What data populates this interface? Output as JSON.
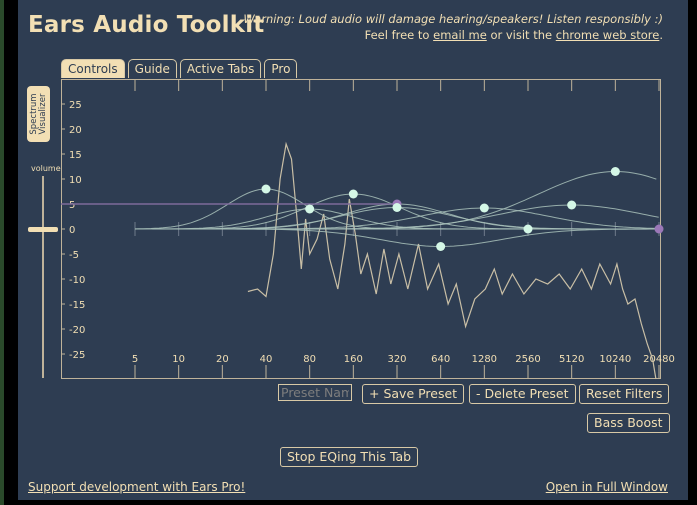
{
  "app": {
    "title": "Ears Audio Toolkit",
    "warning": "Warning: Loud audio will damage hearing/speakers! Listen responsibly :)",
    "contact_prefix": "Feel free to",
    "contact_email_link": "email me",
    "contact_middle": "or visit the",
    "contact_store_link": "chrome web store",
    "contact_suffix": "."
  },
  "tabs": [
    {
      "label": "Controls",
      "active": true
    },
    {
      "label": "Guide",
      "active": false
    },
    {
      "label": "Active Tabs",
      "active": false
    },
    {
      "label": "Pro",
      "active": false
    }
  ],
  "side": {
    "spectrum_tab": "Spectrum Visualizer",
    "volume_label": "volume"
  },
  "chart_data": {
    "type": "line",
    "x_scale": "log",
    "y_ticks": [
      25,
      20,
      15,
      10,
      5,
      0,
      -5,
      -10,
      -15,
      -20,
      -25
    ],
    "ylim": [
      -30,
      30
    ],
    "x_ticks": [
      "5",
      "10",
      "20",
      "40",
      "80",
      "160",
      "320",
      "640",
      "1280",
      "2560",
      "5120",
      "10240",
      "20480"
    ],
    "xlim": [
      3,
      20480
    ],
    "filter_points": [
      {
        "freq": 40,
        "gain": 8,
        "color": "#d4f7e6"
      },
      {
        "freq": 80,
        "gain": 4,
        "color": "#d4f7e6"
      },
      {
        "freq": 160,
        "gain": 7,
        "color": "#d4f7e6"
      },
      {
        "freq": 320,
        "gain": 5,
        "color": "#9b78b8"
      },
      {
        "freq": 320,
        "gain": 4.3,
        "color": "#d4f7e6"
      },
      {
        "freq": 640,
        "gain": -3.5,
        "color": "#d4f7e6"
      },
      {
        "freq": 1280,
        "gain": 4.2,
        "color": "#d4f7e6"
      },
      {
        "freq": 2560,
        "gain": 0,
        "color": "#d4f7e6"
      },
      {
        "freq": 5120,
        "gain": 4.8,
        "color": "#d4f7e6"
      },
      {
        "freq": 10240,
        "gain": 11.5,
        "color": "#d4f7e6"
      },
      {
        "freq": 20480,
        "gain": 0,
        "color": "#9b78b8"
      }
    ],
    "spectrum": [
      {
        "freq": 30,
        "gain": -12.5
      },
      {
        "freq": 35,
        "gain": -12
      },
      {
        "freq": 40,
        "gain": -13.5
      },
      {
        "freq": 45,
        "gain": -5
      },
      {
        "freq": 50,
        "gain": 10
      },
      {
        "freq": 55,
        "gain": 17
      },
      {
        "freq": 60,
        "gain": 14
      },
      {
        "freq": 65,
        "gain": 3
      },
      {
        "freq": 70,
        "gain": -8
      },
      {
        "freq": 75,
        "gain": 2
      },
      {
        "freq": 80,
        "gain": -5
      },
      {
        "freq": 90,
        "gain": -2
      },
      {
        "freq": 100,
        "gain": 3
      },
      {
        "freq": 110,
        "gain": -6
      },
      {
        "freq": 125,
        "gain": -12
      },
      {
        "freq": 140,
        "gain": -3
      },
      {
        "freq": 150,
        "gain": 6
      },
      {
        "freq": 165,
        "gain": -1
      },
      {
        "freq": 180,
        "gain": -9
      },
      {
        "freq": 200,
        "gain": -5
      },
      {
        "freq": 230,
        "gain": -13
      },
      {
        "freq": 260,
        "gain": -4
      },
      {
        "freq": 290,
        "gain": -11
      },
      {
        "freq": 330,
        "gain": -5
      },
      {
        "freq": 380,
        "gain": -12
      },
      {
        "freq": 450,
        "gain": -3
      },
      {
        "freq": 520,
        "gain": -12
      },
      {
        "freq": 620,
        "gain": -7
      },
      {
        "freq": 720,
        "gain": -15
      },
      {
        "freq": 820,
        "gain": -11
      },
      {
        "freq": 950,
        "gain": -19.5
      },
      {
        "freq": 1100,
        "gain": -14
      },
      {
        "freq": 1300,
        "gain": -12
      },
      {
        "freq": 1500,
        "gain": -8
      },
      {
        "freq": 1700,
        "gain": -13
      },
      {
        "freq": 2000,
        "gain": -9
      },
      {
        "freq": 2400,
        "gain": -13
      },
      {
        "freq": 2900,
        "gain": -10
      },
      {
        "freq": 3500,
        "gain": -11
      },
      {
        "freq": 4200,
        "gain": -9
      },
      {
        "freq": 5000,
        "gain": -12
      },
      {
        "freq": 6000,
        "gain": -8
      },
      {
        "freq": 7000,
        "gain": -12
      },
      {
        "freq": 8000,
        "gain": -7
      },
      {
        "freq": 9500,
        "gain": -11
      },
      {
        "freq": 10500,
        "gain": -7
      },
      {
        "freq": 11500,
        "gain": -12
      },
      {
        "freq": 12500,
        "gain": -15
      },
      {
        "freq": 14000,
        "gain": -14
      },
      {
        "freq": 15500,
        "gain": -19
      },
      {
        "freq": 17000,
        "gain": -23
      },
      {
        "freq": 18500,
        "gain": -26
      },
      {
        "freq": 19500,
        "gain": -30
      }
    ]
  },
  "controls": {
    "preset_placeholder": "Preset Name",
    "save_preset": "+ Save Preset",
    "delete_preset": "- Delete Preset",
    "reset_filters": "Reset Filters",
    "bass_boost": "Bass Boost",
    "stop_eq": "Stop EQing This Tab"
  },
  "footer": {
    "support_link": "Support development with Ears Pro!",
    "full_window_link": "Open in Full Window"
  },
  "colors": {
    "background": "#2e3d52",
    "accent": "#f2dfb4",
    "point": "#d4f7e6",
    "point_alt": "#9b78b8"
  }
}
